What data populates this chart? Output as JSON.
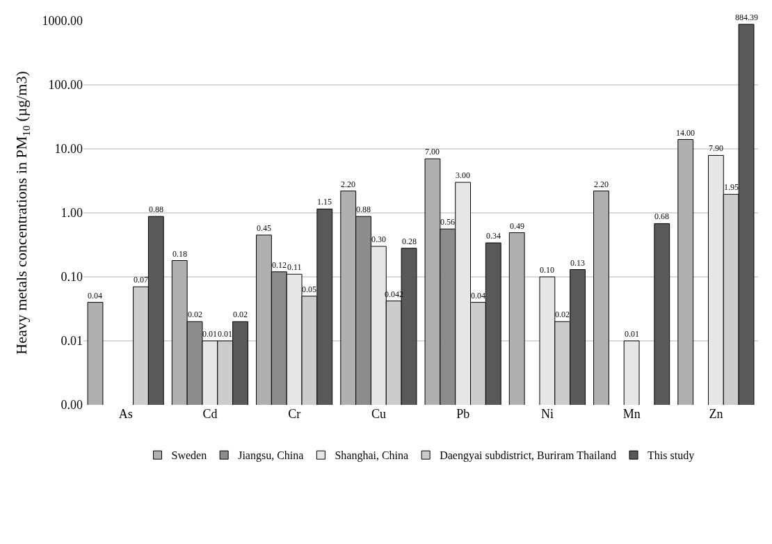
{
  "chart_data": {
    "type": "bar",
    "ylabel": "Heavy metals concentrations in PM$_{10}$ (µg/m3)",
    "categories": [
      "As",
      "Cd",
      "Cr",
      "Cu",
      "Pb",
      "Ni",
      "Mn",
      "Zn"
    ],
    "series": [
      {
        "name": "Sweden",
        "color": "#b0b0b0",
        "values": [
          0.04,
          0.18,
          0.45,
          2.2,
          7.0,
          0.49,
          2.2,
          14.0
        ],
        "value_labels": [
          "0.04",
          "0.18",
          "0.45",
          "2.20",
          "7.00",
          "0.49",
          "2.20",
          "14.00"
        ]
      },
      {
        "name": "Jiangsu, China",
        "color": "#8c8c8c",
        "values": [
          null,
          0.02,
          0.12,
          0.88,
          0.56,
          null,
          null,
          null
        ],
        "value_labels": [
          null,
          "0.02",
          "0.12",
          "0.88",
          "0.56",
          null,
          null,
          null
        ]
      },
      {
        "name": "Shanghai, China",
        "color": "#e6e6e6",
        "values": [
          null,
          0.01,
          0.11,
          0.3,
          3.0,
          0.1,
          0.01,
          7.9
        ],
        "value_labels": [
          null,
          "0.01",
          "0.11",
          "0.30",
          "3.00",
          "0.10",
          "0.01",
          "7.90"
        ]
      },
      {
        "name": "Daengyai subdistrict, Buriram Thailand",
        "color": "#cccccc",
        "values": [
          0.07,
          0.01,
          0.05,
          0.042,
          0.04,
          0.02,
          null,
          1.95
        ],
        "value_labels": [
          "0.07",
          "0.01",
          "0.05",
          "0.042",
          "0.04",
          "0.02",
          null,
          "1.95"
        ]
      },
      {
        "name": "This study",
        "color": "#595959",
        "values": [
          0.88,
          0.02,
          1.15,
          0.28,
          0.34,
          0.13,
          0.68,
          884.39
        ],
        "value_labels": [
          "0.88",
          "0.02",
          "1.15",
          "0.28",
          "0.34",
          "0.13",
          "0.68",
          "884.39"
        ]
      }
    ],
    "log": true,
    "ylim": [
      0.001,
      1000
    ],
    "yticks": [
      {
        "value": 0.001,
        "label": "0.00"
      },
      {
        "value": 0.01,
        "label": "0.01"
      },
      {
        "value": 0.1,
        "label": "0.10"
      },
      {
        "value": 1,
        "label": "1.00"
      },
      {
        "value": 10,
        "label": "10.00"
      },
      {
        "value": 100,
        "label": "100.00"
      },
      {
        "value": 1000,
        "label": "1000.00"
      }
    ],
    "grid": "y",
    "legend": "bottom"
  }
}
